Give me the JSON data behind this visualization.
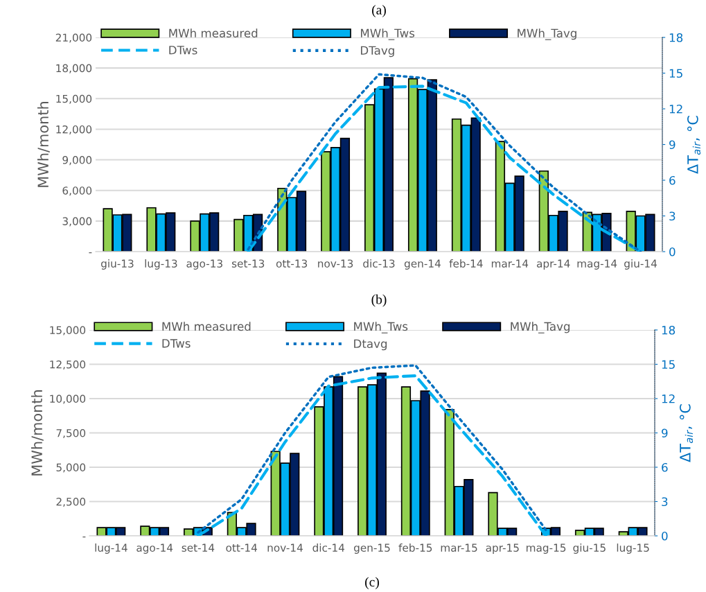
{
  "chart_data": [
    {
      "type": "bar",
      "title": "(a)",
      "annotations": [
        "(b)"
      ],
      "ylabel": "MWh/month",
      "y2label": "ΔT$_{air}$, °C",
      "grid": "y",
      "legend": "top",
      "categories": [
        "giu-13",
        "lug-13",
        "ago-13",
        "set-13",
        "ott-13",
        "nov-13",
        "dic-13",
        "gen-14",
        "feb-14",
        "mar-14",
        "apr-14",
        "mag-14",
        "giu-14"
      ],
      "ylim": [
        0,
        21000
      ],
      "yticks": [
        {
          "value": 0,
          "label": "-"
        },
        {
          "value": 3000,
          "label": "3,000"
        },
        {
          "value": 6000,
          "label": "6,000"
        },
        {
          "value": 9000,
          "label": "9,000"
        },
        {
          "value": 12000,
          "label": "12,000"
        },
        {
          "value": 15000,
          "label": "15,000"
        },
        {
          "value": 18000,
          "label": "18,000"
        },
        {
          "value": 21000,
          "label": "21,000"
        }
      ],
      "y2lim": [
        0,
        18
      ],
      "y2ticks": [
        0,
        3,
        6,
        9,
        12,
        15,
        18
      ],
      "series": [
        {
          "name": "MWh measured",
          "type": "bar",
          "color": "#92d050",
          "values": [
            4200,
            4300,
            3000,
            3150,
            6200,
            9800,
            14400,
            16950,
            13000,
            10800,
            7900,
            3850,
            3950
          ]
        },
        {
          "name": "MWh_Tws",
          "type": "bar",
          "color": "#00b0f0",
          "values": [
            3600,
            3700,
            3700,
            3550,
            5300,
            10200,
            15950,
            15900,
            12400,
            6700,
            3550,
            3650,
            3500
          ]
        },
        {
          "name": "MWh_Tavg",
          "type": "bar",
          "color": "#002060",
          "values": [
            3650,
            3800,
            3800,
            3650,
            5900,
            11100,
            17050,
            16850,
            13100,
            7400,
            3950,
            3750,
            3650
          ]
        },
        {
          "name": "DTws",
          "type": "line",
          "axis": "y2",
          "line_style": "dashed",
          "color": "#00b0f0",
          "values": [
            null,
            null,
            null,
            0,
            5.0,
            9.9,
            13.8,
            13.9,
            12.5,
            7.9,
            4.8,
            2.1,
            0
          ]
        },
        {
          "name": "DTavg",
          "type": "line",
          "axis": "y2",
          "line_style": "dotted",
          "color": "#0070c0",
          "values": [
            null,
            null,
            null,
            0.2,
            6.0,
            10.9,
            14.9,
            14.6,
            13.0,
            8.9,
            5.4,
            2.5,
            0
          ]
        }
      ]
    },
    {
      "type": "bar",
      "annotations": [
        "(c)"
      ],
      "ylabel": "MWh/month",
      "y2label": "ΔT$_{air}$, °C",
      "grid": "y",
      "legend": "top",
      "categories": [
        "lug-14",
        "ago-14",
        "set-14",
        "ott-14",
        "nov-14",
        "dic-14",
        "gen-15",
        "feb-15",
        "mar-15",
        "apr-15",
        "mag-15",
        "giu-15",
        "lug-15"
      ],
      "ylim": [
        0,
        15000
      ],
      "yticks": [
        {
          "value": 0,
          "label": "-"
        },
        {
          "value": 2500,
          "label": "2,500"
        },
        {
          "value": 5000,
          "label": "5,000"
        },
        {
          "value": 7500,
          "label": "7,500"
        },
        {
          "value": 10000,
          "label": "10,000"
        },
        {
          "value": 12500,
          "label": "12,500"
        },
        {
          "value": 15000,
          "label": "15,000"
        }
      ],
      "y2lim": [
        0,
        18
      ],
      "y2ticks": [
        0,
        3,
        6,
        9,
        12,
        15,
        18
      ],
      "series": [
        {
          "name": "MWh measured",
          "type": "bar",
          "color": "#92d050",
          "values": [
            600,
            700,
            500,
            1700,
            6150,
            9400,
            10850,
            10850,
            9200,
            3150,
            null,
            400,
            300
          ]
        },
        {
          "name": "MWh_Tws",
          "type": "bar",
          "color": "#00b0f0",
          "values": [
            600,
            600,
            600,
            600,
            5300,
            10850,
            11000,
            9850,
            3600,
            550,
            550,
            550,
            600
          ]
        },
        {
          "name": "MWh_Tavg",
          "type": "bar",
          "color": "#002060",
          "values": [
            600,
            600,
            600,
            900,
            6000,
            11600,
            11850,
            10550,
            4100,
            550,
            600,
            550,
            600
          ]
        },
        {
          "name": "DTws",
          "type": "line",
          "axis": "y2",
          "line_style": "dashed",
          "color": "#00b0f0",
          "values": [
            null,
            null,
            0,
            2.4,
            8.2,
            13.1,
            13.8,
            14.0,
            9.5,
            5.2,
            0,
            null,
            null
          ]
        },
        {
          "name": "Dtavg",
          "type": "line",
          "axis": "y2",
          "line_style": "dotted",
          "color": "#0070c0",
          "values": [
            null,
            null,
            0.3,
            3.2,
            9.0,
            13.9,
            14.7,
            14.9,
            10.3,
            5.8,
            0.5,
            null,
            null
          ]
        }
      ]
    }
  ]
}
